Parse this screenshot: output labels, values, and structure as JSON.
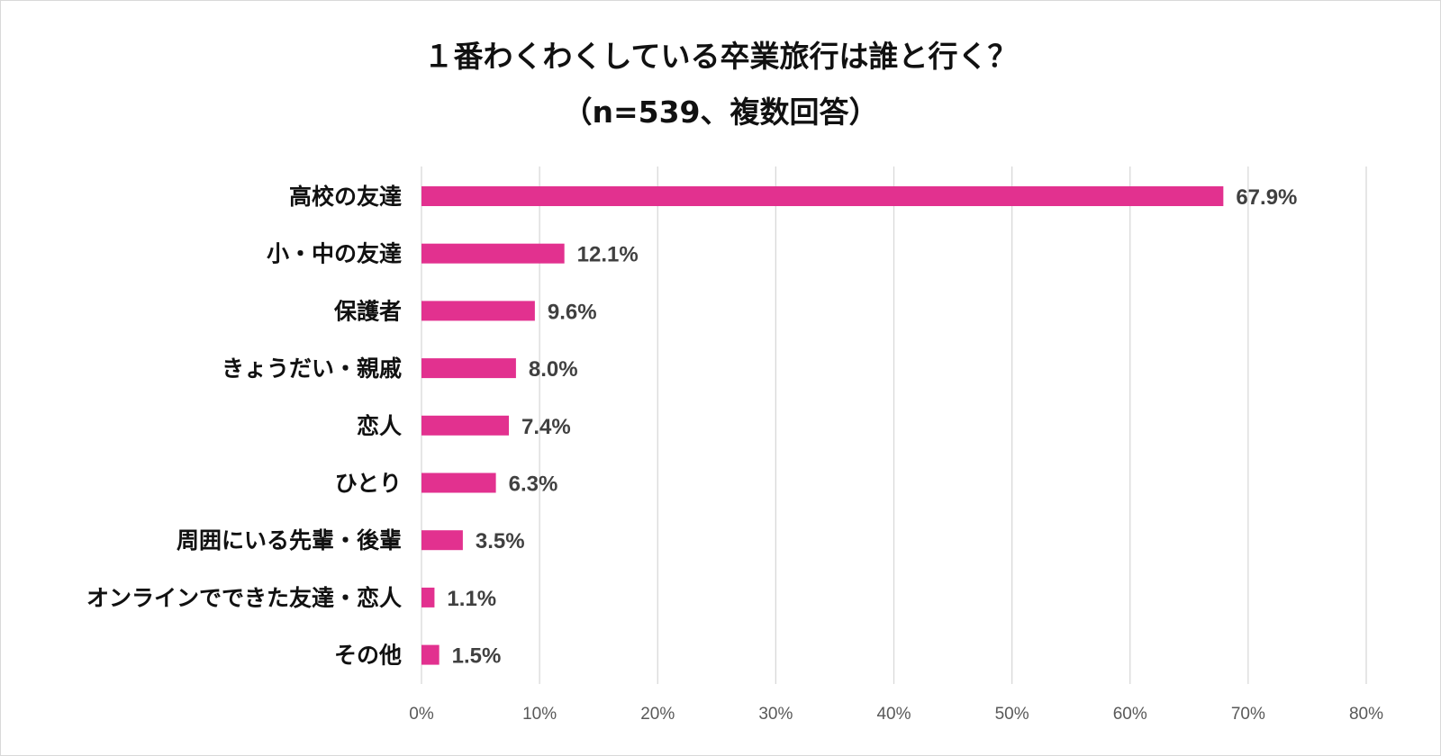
{
  "chart_data": {
    "type": "bar",
    "orientation": "horizontal",
    "title": "１番わくわくしている卒業旅行は誰と行く？",
    "subtitle": "（n=539、複数回答）",
    "categories": [
      "高校の友達",
      "小・中の友達",
      "保護者",
      "きょうだい・親戚",
      "恋人",
      "ひとり",
      "周囲にいる先輩・後輩",
      "オンラインでできた友達・恋人",
      "その他"
    ],
    "values": [
      67.9,
      12.1,
      9.6,
      8.0,
      7.4,
      6.3,
      3.5,
      1.1,
      1.5
    ],
    "data_labels": [
      "67.9%",
      "12.1%",
      "9.6%",
      "8.0%",
      "7.4%",
      "6.3%",
      "3.5%",
      "1.1%",
      "1.5%"
    ],
    "xlim": [
      0,
      80
    ],
    "x_ticks": [
      "0%",
      "10%",
      "20%",
      "30%",
      "40%",
      "50%",
      "60%",
      "70%",
      "80%"
    ],
    "grid": true,
    "bar_color": "#e2318f",
    "xlabel": "",
    "ylabel": ""
  }
}
